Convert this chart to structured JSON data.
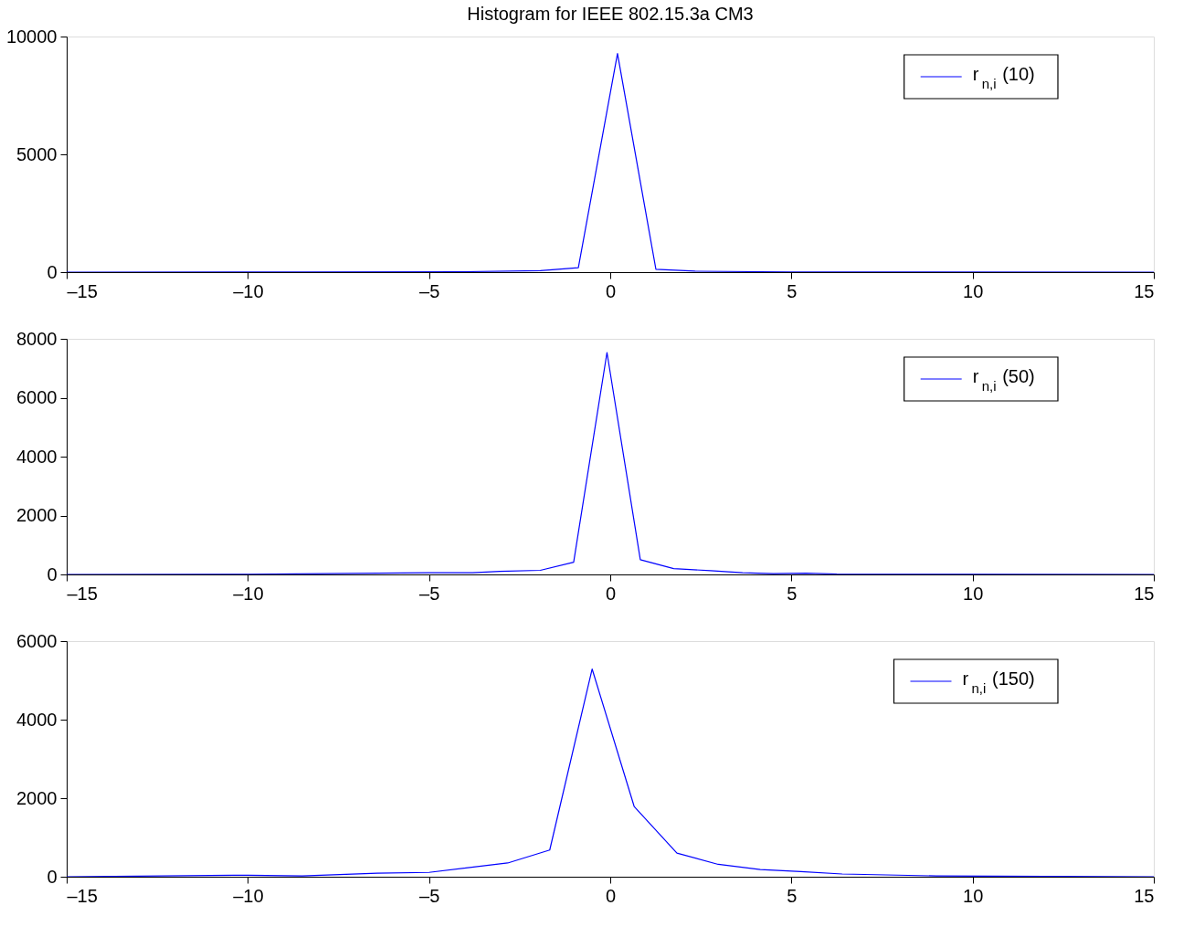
{
  "chart_data": [
    {
      "type": "line",
      "title": "Histogram for IEEE 802.15.3a CM3",
      "legend": "top right",
      "series": [
        {
          "name": "r$_{n,i}$(10)",
          "color": "#0000ff",
          "x": [
            -15,
            -8.4,
            -4.0,
            -1.93,
            -0.88,
            0.2,
            1.26,
            2.34,
            5,
            15
          ],
          "values": [
            0,
            5,
            20,
            60,
            190,
            9280,
            120,
            40,
            10,
            0
          ]
        }
      ],
      "xlim": [
        -15,
        15
      ],
      "ylim": [
        0,
        10000
      ],
      "xticks": [
        {
          "value": -15,
          "label": "–15"
        },
        {
          "value": -10,
          "label": "–10"
        },
        {
          "value": -5,
          "label": "–5"
        },
        0,
        5,
        10,
        15
      ],
      "yticks": [
        0,
        5000,
        10000
      ]
    },
    {
      "type": "line",
      "legend": "top right",
      "series": [
        {
          "name": "r$_{n,i}$(50)",
          "color": "#0000ff",
          "x": [
            -15,
            -10,
            -5.0,
            -3.8,
            -3.05,
            -1.93,
            -1.01,
            -0.09,
            0.83,
            1.75,
            2.77,
            3.65,
            4.5,
            5.4,
            6.25,
            10,
            15
          ],
          "values": [
            0,
            5,
            60,
            60,
            105,
            140,
            415,
            7535,
            500,
            200,
            125,
            60,
            30,
            45,
            15,
            5,
            0
          ]
        }
      ],
      "xlim": [
        -15,
        15
      ],
      "ylim": [
        0,
        8000
      ],
      "xticks": [
        {
          "value": -15,
          "label": "–15"
        },
        {
          "value": -10,
          "label": "–10"
        },
        {
          "value": -5,
          "label": "–5"
        },
        0,
        5,
        10,
        15
      ],
      "yticks": [
        0,
        2000,
        4000,
        6000,
        8000
      ]
    },
    {
      "type": "line",
      "legend": "top right",
      "series": [
        {
          "name": "r$_{n,i}$(150)",
          "color": "#0000ff",
          "x": [
            -15,
            -10,
            -8.5,
            -6.43,
            -5.0,
            -2.83,
            -1.67,
            -0.5,
            0.66,
            1.84,
            2.98,
            4.14,
            5.26,
            6.4,
            9,
            15
          ],
          "values": [
            0,
            40,
            20,
            90,
            110,
            350,
            680,
            5290,
            1790,
            600,
            315,
            185,
            130,
            70,
            20,
            0
          ]
        }
      ],
      "xlim": [
        -15,
        15
      ],
      "ylim": [
        0,
        6000
      ],
      "xticks": [
        {
          "value": -15,
          "label": "–15"
        },
        {
          "value": -10,
          "label": "–10"
        },
        {
          "value": -5,
          "label": "–5"
        },
        0,
        5,
        10,
        15
      ],
      "yticks": [
        0,
        2000,
        4000,
        6000
      ]
    }
  ]
}
